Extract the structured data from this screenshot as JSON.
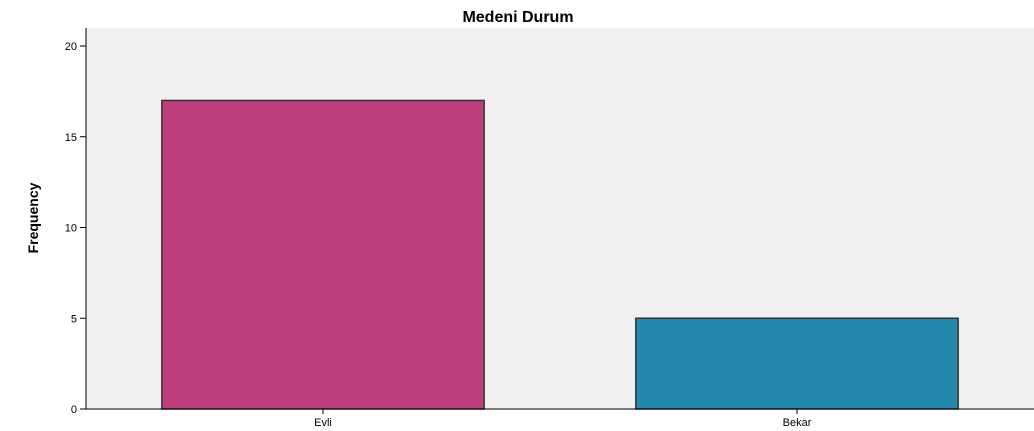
{
  "chart_data": {
    "type": "bar",
    "title": "Medeni Durum",
    "xlabel": "",
    "ylabel": "Frequency",
    "categories": [
      "Evli",
      "Bekar"
    ],
    "values": [
      17,
      5
    ],
    "ylim": [
      0,
      20
    ],
    "yticks": [
      0,
      5,
      10,
      15,
      20
    ],
    "grid": false,
    "legend": "none",
    "colors": {
      "plot_background": "#f0f0f0",
      "bars": [
        "#bc3f7b",
        "#2589ae"
      ],
      "bar_edge": "#333333"
    }
  }
}
